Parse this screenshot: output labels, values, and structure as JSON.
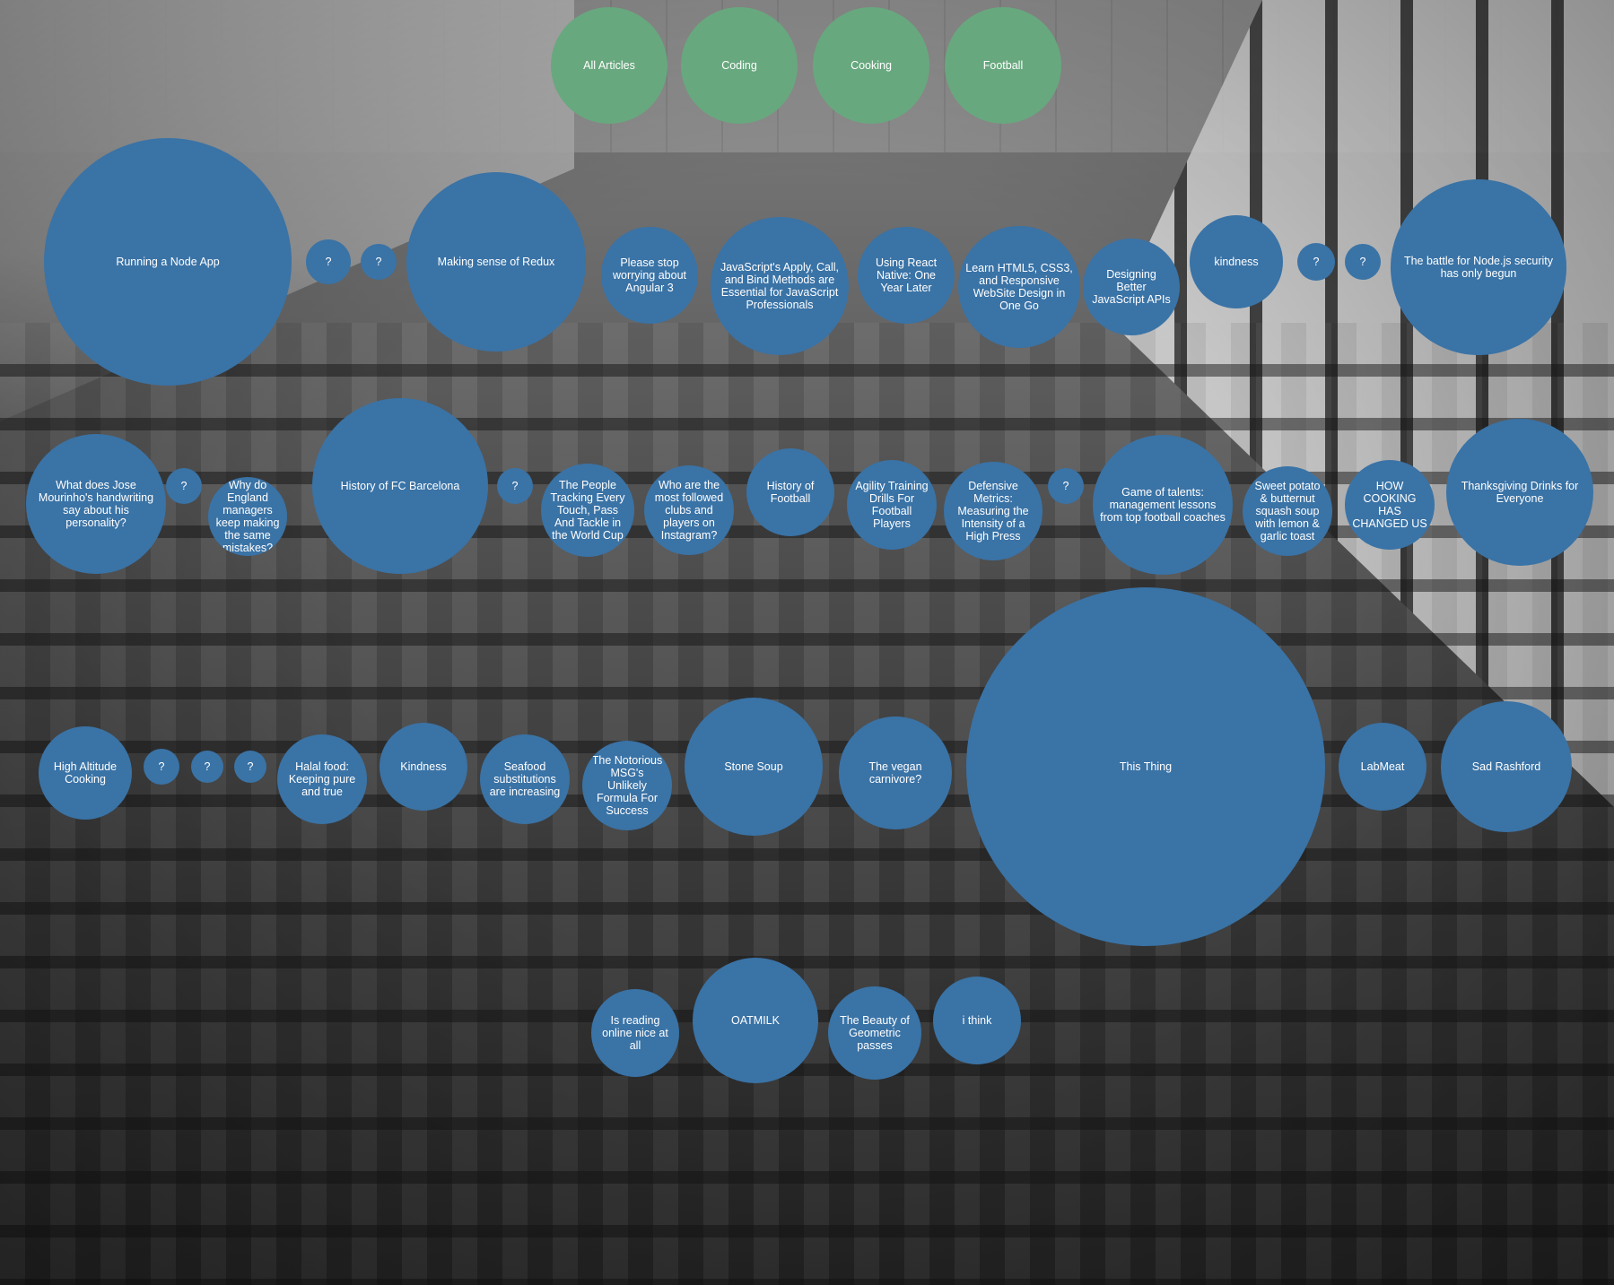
{
  "colors": {
    "category": "#68a87e",
    "article": "#3a73a6",
    "text": "#ffffff"
  },
  "categories": [
    {
      "id": "all",
      "label": "All Articles"
    },
    {
      "id": "coding",
      "label": "Coding"
    },
    {
      "id": "cooking",
      "label": "Cooking"
    },
    {
      "id": "football",
      "label": "Football"
    }
  ],
  "articles": [
    {
      "id": "node-app",
      "label": "Running a Node App"
    },
    {
      "id": "q1",
      "label": "?"
    },
    {
      "id": "q2",
      "label": "?"
    },
    {
      "id": "redux",
      "label": "Making sense of Redux"
    },
    {
      "id": "angular3",
      "label": "Please stop worrying about Angular 3"
    },
    {
      "id": "apply-call-bind",
      "label": "JavaScript's Apply, Call, and Bind Methods are Essential for JavaScript Professionals"
    },
    {
      "id": "react-native",
      "label": "Using React Native: One Year Later"
    },
    {
      "id": "html5",
      "label": "Learn HTML5, CSS3, and Responsive WebSite Design in One Go"
    },
    {
      "id": "js-apis",
      "label": "Designing Better JavaScript APIs"
    },
    {
      "id": "kindness-lower",
      "label": "kindness"
    },
    {
      "id": "q3",
      "label": "?"
    },
    {
      "id": "q4",
      "label": "?"
    },
    {
      "id": "node-security",
      "label": "The battle for Node.js security has only begun"
    },
    {
      "id": "mourinho",
      "label": "What does Jose Mourinho's handwriting say about his personality?"
    },
    {
      "id": "q5",
      "label": "?"
    },
    {
      "id": "england",
      "label": "Why do England managers keep making the same mistakes?"
    },
    {
      "id": "barcelona",
      "label": "History of FC Barcelona"
    },
    {
      "id": "q6",
      "label": "?"
    },
    {
      "id": "tracking",
      "label": "The People Tracking Every Touch, Pass And Tackle in the World Cup"
    },
    {
      "id": "instagram",
      "label": "Who are the most followed clubs and players on Instagram?"
    },
    {
      "id": "history-football",
      "label": "History of Football"
    },
    {
      "id": "agility",
      "label": "Agility Training Drills For Football Players"
    },
    {
      "id": "defensive",
      "label": "Defensive Metrics: Measuring the Intensity of a High Press"
    },
    {
      "id": "q7",
      "label": "?"
    },
    {
      "id": "talents",
      "label": "Game of talents: management lessons from top football coaches"
    },
    {
      "id": "sweet-potato",
      "label": "Sweet potato & butternut squash soup with lemon & garlic toast"
    },
    {
      "id": "how-cooking",
      "label": "HOW COOKING HAS CHANGED US"
    },
    {
      "id": "thanksgiving",
      "label": "Thanksgiving Drinks for Everyone"
    },
    {
      "id": "high-altitude",
      "label": "High Altitude Cooking"
    },
    {
      "id": "q8",
      "label": "?"
    },
    {
      "id": "q9",
      "label": "?"
    },
    {
      "id": "q10",
      "label": "?"
    },
    {
      "id": "halal",
      "label": "Halal food: Keeping pure and true"
    },
    {
      "id": "kindness-upper",
      "label": "Kindness"
    },
    {
      "id": "seafood",
      "label": "Seafood substitutions are increasing"
    },
    {
      "id": "msg",
      "label": "The Notorious MSG's Unlikely Formula For Success"
    },
    {
      "id": "stone-soup",
      "label": "Stone Soup"
    },
    {
      "id": "vegan",
      "label": "The vegan carnivore?"
    },
    {
      "id": "this-thing",
      "label": "This Thing"
    },
    {
      "id": "labmeat",
      "label": "LabMeat"
    },
    {
      "id": "rashford",
      "label": "Sad Rashford"
    },
    {
      "id": "reading-online",
      "label": "Is reading online nice at all"
    },
    {
      "id": "oatmilk",
      "label": "OATMILK"
    },
    {
      "id": "geometric",
      "label": "The Beauty of Geometric passes"
    },
    {
      "id": "i-think",
      "label": "i think"
    }
  ]
}
